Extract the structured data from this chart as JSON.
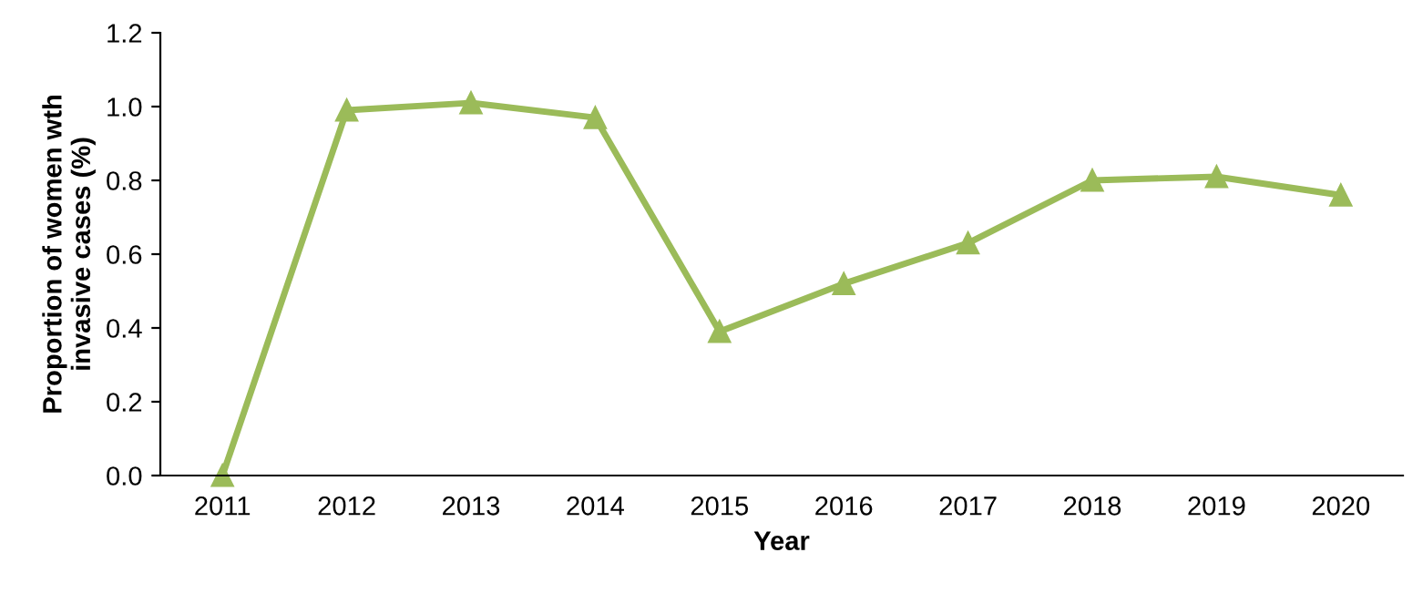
{
  "chart_data": {
    "type": "line",
    "xlabel": "Year",
    "ylabel": "Proportion of women wth\ninvasive cases (%)",
    "categories": [
      "2011",
      "2012",
      "2013",
      "2014",
      "2015",
      "2016",
      "2017",
      "2018",
      "2019",
      "2020"
    ],
    "series": [
      {
        "color": "#9bbb59",
        "values": [
          0.0,
          0.99,
          1.01,
          0.97,
          0.39,
          0.52,
          0.63,
          0.8,
          0.81,
          0.76
        ]
      }
    ],
    "ylim": [
      0,
      1.2
    ],
    "yticks": [
      {
        "value": 0,
        "label": "0.0"
      },
      {
        "value": 0.2,
        "label": "0.2"
      },
      {
        "value": 0.4,
        "label": "0.4"
      },
      {
        "value": 0.6,
        "label": "0.6"
      },
      {
        "value": 0.8,
        "label": "0.8"
      },
      {
        "value": 1.0,
        "label": "1.0"
      },
      {
        "value": 1.2,
        "label": "1.2"
      }
    ],
    "marker": "triangle",
    "line_style": "solid",
    "grid": false,
    "legend": false
  }
}
